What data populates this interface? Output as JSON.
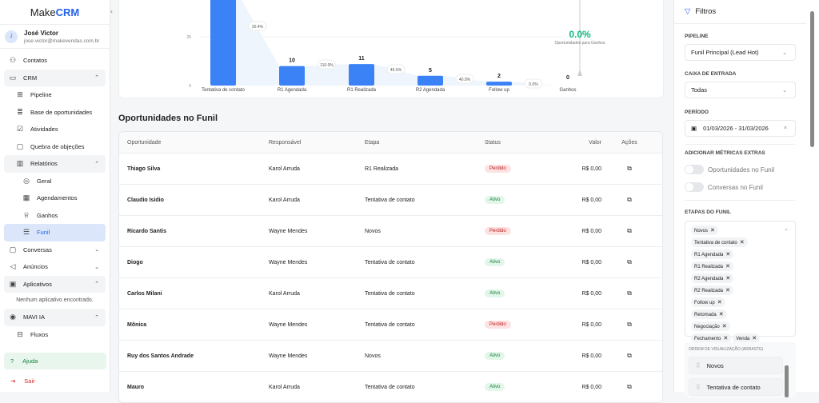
{
  "sidebar": {
    "logo_prefix": "Make",
    "logo_suffix": "CRM",
    "user": {
      "initial": "J",
      "name": "José Victor",
      "email": "jose.victor@makevendas.com.br"
    },
    "items": [
      {
        "label": "Contatos",
        "icon": "users-icon"
      },
      {
        "label": "CRM",
        "icon": "briefcase-icon"
      },
      {
        "label": "Pipeline",
        "icon": "grid-icon"
      },
      {
        "label": "Base de oportunidades",
        "icon": "database-icon"
      },
      {
        "label": "Atividades",
        "icon": "checkbox-icon"
      },
      {
        "label": "Quebra de objeções",
        "icon": "message-icon"
      },
      {
        "label": "Relatórios",
        "icon": "bar-chart-icon"
      },
      {
        "label": "Geral",
        "icon": "award-icon"
      },
      {
        "label": "Agendamentos",
        "icon": "calendar-icon"
      },
      {
        "label": "Ganhos",
        "icon": "trophy-icon"
      },
      {
        "label": "Funil",
        "icon": "funnel-list-icon"
      },
      {
        "label": "Conversas",
        "icon": "chat-icon"
      },
      {
        "label": "Anúncios",
        "icon": "megaphone-icon"
      },
      {
        "label": "Aplicativos",
        "icon": "app-icon"
      },
      {
        "label": "MAVI IA",
        "icon": "ai-icon"
      },
      {
        "label": "Fluxos",
        "icon": "flow-icon"
      }
    ],
    "no_apps": "Nenhum aplicativo encontrado.",
    "help": "Ajuda",
    "logout": "Sair"
  },
  "chart_data": {
    "type": "bar",
    "categories": [
      "Tentativa de contato",
      "R1 Agendada",
      "R1 Realizada",
      "R2 Agendada",
      "Follow up",
      "Ganhos"
    ],
    "values": [
      49,
      10,
      11,
      5,
      2,
      0
    ],
    "conversion_labels": [
      "20.4%",
      "110.0%",
      "45.5%",
      "40.0%",
      "0.0%"
    ],
    "y_ticks": [
      "0",
      "25"
    ],
    "bar_color": "#3b82f6",
    "summary_value": "0.0%",
    "summary_label": "Oportunidades para Ganhos",
    "summary_color": "#10b981"
  },
  "table": {
    "title": "Oportunidades no Funil",
    "headers": [
      "Oportunidade",
      "Responsável",
      "Etapa",
      "Status",
      "Valor",
      "Ações"
    ],
    "rows": [
      [
        "Thiago Silva",
        "Karol Arruda",
        "R1 Realizada",
        "Perdido",
        "R$ 0,00"
      ],
      [
        "Claudio Isidio",
        "Karol Arruda",
        "Tentativa de contato",
        "Ativo",
        "R$ 0,00"
      ],
      [
        "Ricardo Santis",
        "Wayne Mendes",
        "Novos",
        "Perdido",
        "R$ 0,00"
      ],
      [
        "Diogo",
        "Wayne Mendes",
        "Tentativa de contato",
        "Ativo",
        "R$ 0,00"
      ],
      [
        "Carlos Milani",
        "Karol Arruda",
        "Tentativa de contato",
        "Ativo",
        "R$ 0,00"
      ],
      [
        "Mônica",
        "Wayne Mendes",
        "Tentativa de contato",
        "Perdido",
        "R$ 0,00"
      ],
      [
        "Ruy dos Santos Andrade",
        "Wayne Mendes",
        "Novos",
        "Ativo",
        "R$ 0,00"
      ],
      [
        "Mauro",
        "Karol Arruda",
        "Tentativa de contato",
        "Ativo",
        "R$ 0,00"
      ]
    ]
  },
  "filters": {
    "title": "Filtros",
    "pipeline_label": "PIPELINE",
    "pipeline_value": "Funil Principal (Lead Hot)",
    "inbox_label": "CAIXA DE ENTRADA",
    "inbox_value": "Todas",
    "period_label": "PERÍODO",
    "period_value": "01/03/2026 - 31/03/2026",
    "extra_label": "ADICIONAR MÉTRICAS EXTRAS",
    "toggle1": "Oportunidades no Funil",
    "toggle2": "Conversas no Funil",
    "stages_label": "ETAPAS DO FUNIL",
    "stages": [
      "Novos",
      "Tentativa de contato",
      "R1 Agendada",
      "R1 Realizada",
      "R2 Agendada",
      "R2 Realizada",
      "Follow up",
      "Retomada",
      "Negociação",
      "Fechamento",
      "Venda"
    ],
    "order_label": "ORDEM DE VISUALIZAÇÃO (ARRASTE)",
    "order": [
      "Novos",
      "Tentativa de contato"
    ]
  }
}
